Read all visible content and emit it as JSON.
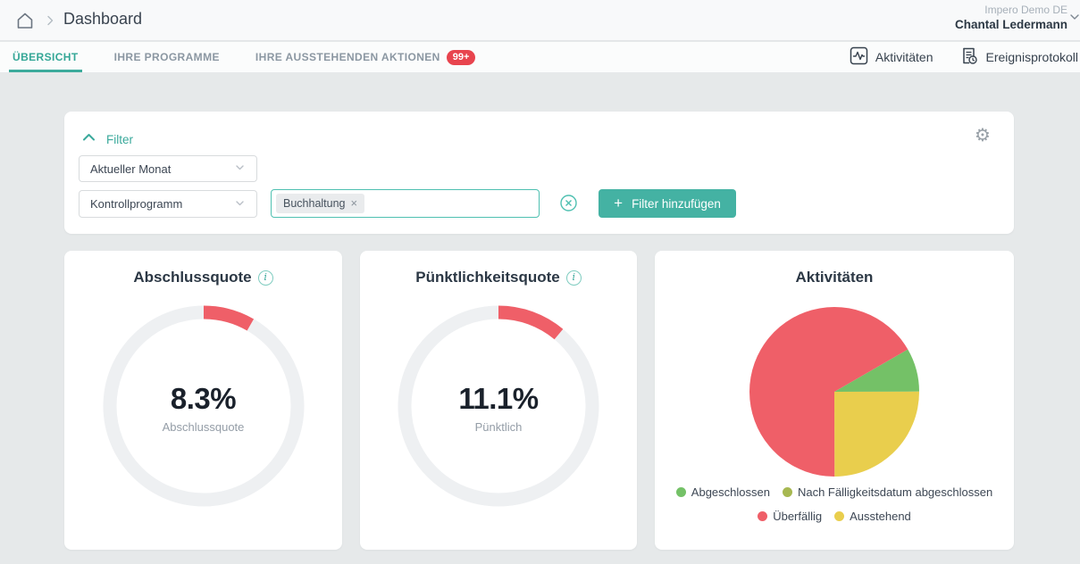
{
  "topbar": {
    "breadcrumb_title": "Dashboard",
    "account": {
      "org": "Impero Demo DE",
      "user": "Chantal Ledermann"
    }
  },
  "tabs": {
    "items": [
      {
        "label": "ÜBERSICHT",
        "active": true
      },
      {
        "label": "IHRE PROGRAMME",
        "active": false
      },
      {
        "label": "IHRE AUSSTEHENDEN AKTIONEN",
        "active": false,
        "badge": "99+"
      }
    ],
    "actions": [
      {
        "label": "Aktivitäten",
        "icon": "activity-icon"
      },
      {
        "label": "Ereignisprotokoll",
        "icon": "event-log-icon"
      }
    ]
  },
  "filter": {
    "title": "Filter",
    "period_select_value": "Aktueller Monat",
    "type_select_value": "Kontrollprogramm",
    "tags": [
      {
        "label": "Buchhaltung",
        "remove_glyph": "×"
      }
    ],
    "add_button_label": "Filter hinzufügen",
    "plus_glyph": "+",
    "gear_glyph": "⚙"
  },
  "theme": {
    "accent_teal": "#44b2a3",
    "teal_text": "#3aa99b",
    "badge_red": "#e8444e",
    "chart_red": "#ef5f68",
    "chart_green": "#74c167",
    "chart_olive": "#a7b851",
    "chart_yellow": "#e9ce4d",
    "donut_track": "#eef0f2",
    "page_bg": "#e6e9ea"
  },
  "chart_data": [
    {
      "type": "donut",
      "title": "Abschlussquote",
      "value_percent": 8.3,
      "value_label": "8.3%",
      "sublabel": "Abschlussquote",
      "arc_color": "#ef5f68",
      "track_color": "#eef0f2",
      "start": "top",
      "direction": "clockwise"
    },
    {
      "type": "donut",
      "title": "Pünktlichkeitsquote",
      "value_percent": 11.1,
      "value_label": "11.1%",
      "sublabel": "Pünktlich",
      "arc_color": "#ef5f68",
      "track_color": "#eef0f2",
      "start": "top",
      "direction": "clockwise"
    },
    {
      "type": "pie",
      "title": "Aktivitäten",
      "start_angle_deg": -30,
      "direction": "clockwise",
      "slices": [
        {
          "label": "Abgeschlossen",
          "percent": 8.3,
          "color": "#74c167"
        },
        {
          "label": "Ausstehend",
          "percent": 25.0,
          "color": "#e9ce4d"
        },
        {
          "label": "Überfällig",
          "percent": 66.7,
          "color": "#ef5f68"
        }
      ],
      "legend": [
        {
          "label": "Abgeschlossen",
          "color": "#74c167"
        },
        {
          "label": "Nach Fälligkeitsdatum abgeschlossen",
          "color": "#a7b851"
        },
        {
          "label": "Überfällig",
          "color": "#ef5f68"
        },
        {
          "label": "Ausstehend",
          "color": "#e9ce4d"
        }
      ],
      "legend_position": "bottom"
    }
  ]
}
